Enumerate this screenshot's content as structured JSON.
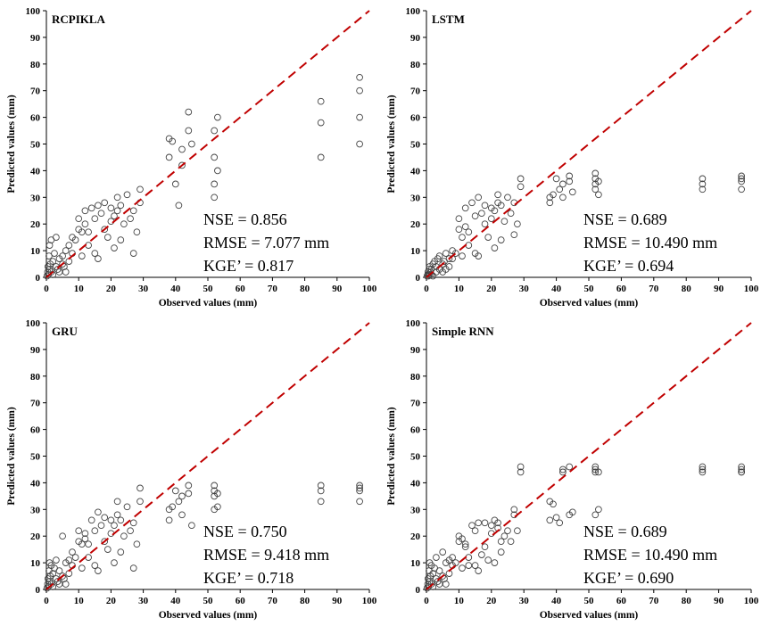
{
  "colors": {
    "points": "#444444",
    "reference_line": "#c00000",
    "axis": "#000000"
  },
  "chart_data": [
    {
      "type": "scatter",
      "title": "RCPIKLA",
      "xlabel": "Observed values (mm)",
      "ylabel": "Predicted values (mm)",
      "xlim": [
        0,
        100
      ],
      "ylim": [
        0,
        100
      ],
      "x_ticks": [
        "0",
        "10",
        "20",
        "30",
        "40",
        "50",
        "60",
        "70",
        "80",
        "90",
        "100"
      ],
      "y_ticks": [
        "0",
        "10",
        "20",
        "30",
        "40",
        "50",
        "60",
        "70",
        "80",
        "90",
        "100"
      ],
      "grid": false,
      "reference_line": "1:1 dashed",
      "metrics": [
        "NSE = 0.856",
        "RMSE = 7.077 mm",
        "KGE’ = 0.817"
      ],
      "series": [
        {
          "x": [
            0.2,
            0.4,
            0.5,
            0.6,
            0.8,
            1,
            1,
            1.2,
            1.5,
            1.5,
            2,
            2,
            2.5,
            3,
            3,
            3.5,
            4,
            4,
            5,
            5,
            5.5,
            6,
            6,
            7,
            7,
            8,
            8,
            9,
            10,
            10,
            11,
            11,
            12,
            12,
            13,
            13,
            14,
            15,
            15,
            16,
            16,
            17,
            18,
            18,
            19,
            20,
            20,
            21,
            21,
            22,
            22,
            23,
            23,
            24,
            25,
            26,
            27,
            27,
            28,
            29,
            29,
            38,
            38,
            39,
            40,
            41,
            42,
            42,
            44,
            44,
            45,
            52,
            52,
            52,
            52,
            53,
            53,
            85,
            85,
            85,
            97,
            97,
            97,
            97
          ],
          "y": [
            0.5,
            2,
            4,
            1,
            8,
            3,
            12,
            5,
            2,
            14,
            6,
            1,
            9,
            4,
            15,
            3,
            7,
            2,
            8,
            5,
            4,
            10,
            2,
            12,
            6,
            15,
            9,
            14,
            18,
            22,
            8,
            17,
            25,
            20,
            12,
            17,
            26,
            22,
            9,
            27,
            7,
            24,
            18,
            28,
            15,
            21,
            26,
            23,
            11,
            25,
            30,
            14,
            27,
            20,
            31,
            22,
            25,
            9,
            17,
            33,
            28,
            45,
            52,
            51,
            35,
            27,
            48,
            42,
            55,
            62,
            50,
            30,
            45,
            35,
            55,
            40,
            60,
            45,
            58,
            66,
            60,
            70,
            75,
            50
          ]
        }
      ]
    },
    {
      "type": "scatter",
      "title": "LSTM",
      "xlabel": "Observed values (mm)",
      "ylabel": "Predicted values (mm)",
      "xlim": [
        0,
        100
      ],
      "ylim": [
        0,
        100
      ],
      "x_ticks": [
        "0",
        "10",
        "20",
        "30",
        "40",
        "50",
        "60",
        "70",
        "80",
        "90",
        "100"
      ],
      "y_ticks": [
        "0",
        "10",
        "20",
        "30",
        "40",
        "50",
        "60",
        "70",
        "80",
        "90",
        "100"
      ],
      "grid": false,
      "reference_line": "1:1 dashed",
      "metrics": [
        "NSE = 0.689",
        "RMSE = 10.490 mm",
        "KGE’ = 0.694"
      ],
      "series": [
        {
          "x": [
            0.2,
            0.4,
            0.5,
            0.6,
            0.8,
            1,
            1,
            1.2,
            1.5,
            1.5,
            2,
            2,
            2.5,
            3,
            3,
            3.5,
            4,
            4,
            5,
            5,
            5.5,
            6,
            6,
            7,
            7,
            8,
            8,
            9,
            10,
            10,
            11,
            11,
            12,
            12,
            13,
            13,
            14,
            15,
            15,
            16,
            16,
            17,
            18,
            18,
            19,
            20,
            20,
            21,
            21,
            22,
            22,
            23,
            23,
            24,
            25,
            26,
            27,
            27,
            28,
            29,
            29,
            38,
            38,
            39,
            40,
            41,
            42,
            42,
            44,
            44,
            45,
            52,
            52,
            52,
            52,
            53,
            53,
            85,
            85,
            85,
            97,
            97,
            97,
            97
          ],
          "y": [
            0.5,
            1,
            2,
            0.5,
            3,
            1,
            4,
            2,
            1,
            3,
            5,
            0.5,
            6,
            2,
            4,
            7,
            3,
            8,
            5,
            2,
            6,
            9,
            3,
            7,
            4,
            10,
            7,
            9,
            18,
            22,
            8,
            15,
            26,
            19,
            12,
            17,
            28,
            23,
            9,
            30,
            8,
            24,
            20,
            27,
            15,
            22,
            26,
            25,
            11,
            28,
            31,
            14,
            27,
            21,
            30,
            24,
            28,
            16,
            20,
            37,
            34,
            28,
            30,
            31,
            37,
            33,
            35,
            30,
            38,
            36,
            32,
            33,
            35,
            37,
            39,
            31,
            36,
            35,
            37,
            33,
            36,
            38,
            33,
            37
          ]
        }
      ]
    },
    {
      "type": "scatter",
      "title": "GRU",
      "xlabel": "Observed values (mm)",
      "ylabel": "Predicted values (mm)",
      "xlim": [
        0,
        100
      ],
      "ylim": [
        0,
        100
      ],
      "x_ticks": [
        "0",
        "10",
        "20",
        "30",
        "40",
        "50",
        "60",
        "70",
        "80",
        "90",
        "100"
      ],
      "y_ticks": [
        "0",
        "10",
        "20",
        "30",
        "40",
        "50",
        "60",
        "70",
        "80",
        "90",
        "100"
      ],
      "grid": false,
      "reference_line": "1:1 dashed",
      "metrics": [
        "NSE = 0.750",
        "RMSE = 9.418 mm",
        "KGE’ = 0.718"
      ],
      "series": [
        {
          "x": [
            0.2,
            0.4,
            0.5,
            0.6,
            0.8,
            1,
            1,
            1.2,
            1.5,
            1.5,
            2,
            2,
            2.5,
            3,
            3,
            3.5,
            4,
            4,
            5,
            5,
            5.5,
            6,
            6,
            7,
            7,
            8,
            8,
            9,
            10,
            10,
            11,
            11,
            12,
            12,
            13,
            13,
            14,
            15,
            15,
            16,
            16,
            17,
            18,
            18,
            19,
            20,
            20,
            21,
            21,
            22,
            22,
            23,
            23,
            24,
            25,
            26,
            27,
            27,
            28,
            29,
            29,
            38,
            38,
            39,
            40,
            41,
            42,
            42,
            44,
            44,
            45,
            52,
            52,
            52,
            52,
            53,
            53,
            85,
            85,
            85,
            97,
            97,
            97,
            97
          ],
          "y": [
            0.5,
            2,
            4,
            1,
            7,
            3,
            10,
            5,
            2,
            9,
            6,
            1,
            8,
            4,
            11,
            3,
            7,
            2,
            20,
            5,
            4,
            10,
            2,
            11,
            6,
            14,
            9,
            12,
            18,
            22,
            8,
            17,
            21,
            19,
            12,
            17,
            26,
            22,
            9,
            29,
            7,
            24,
            18,
            27,
            15,
            21,
            26,
            24,
            10,
            28,
            33,
            14,
            26,
            20,
            31,
            22,
            25,
            8,
            17,
            38,
            33,
            26,
            30,
            31,
            37,
            33,
            35,
            28,
            39,
            36,
            24,
            30,
            35,
            37,
            39,
            31,
            36,
            33,
            37,
            39,
            33,
            37,
            39,
            38
          ]
        }
      ]
    },
    {
      "type": "scatter",
      "title": "Simple RNN",
      "xlabel": "Observed values (mm)",
      "ylabel": "Predicted values (mm)",
      "xlim": [
        0,
        100
      ],
      "ylim": [
        0,
        100
      ],
      "x_ticks": [
        "0",
        "10",
        "20",
        "30",
        "40",
        "50",
        "60",
        "70",
        "80",
        "90",
        "100"
      ],
      "y_ticks": [
        "0",
        "10",
        "20",
        "30",
        "40",
        "50",
        "60",
        "70",
        "80",
        "90",
        "100"
      ],
      "grid": false,
      "reference_line": "1:1 dashed",
      "metrics": [
        "NSE = 0.689",
        "RMSE = 10.490 mm",
        "KGE’ = 0.690"
      ],
      "series": [
        {
          "x": [
            0.2,
            0.4,
            0.5,
            0.6,
            0.8,
            1,
            1,
            1.2,
            1.5,
            1.5,
            2,
            2,
            2.5,
            3,
            3,
            3.5,
            4,
            4,
            5,
            5,
            5.5,
            6,
            6,
            7,
            7,
            8,
            8,
            9,
            10,
            10,
            11,
            11,
            12,
            12,
            13,
            13,
            14,
            15,
            15,
            16,
            16,
            17,
            18,
            18,
            19,
            20,
            20,
            21,
            21,
            22,
            22,
            23,
            23,
            24,
            25,
            26,
            27,
            27,
            28,
            29,
            29,
            38,
            38,
            39,
            40,
            41,
            42,
            42,
            44,
            44,
            45,
            52,
            52,
            52,
            52,
            53,
            53,
            85,
            85,
            85,
            97,
            97,
            97,
            97
          ],
          "y": [
            0.5,
            2,
            4,
            1,
            7,
            3,
            10,
            5,
            2,
            9,
            6,
            1,
            8,
            4,
            12,
            3,
            7,
            2,
            14,
            5,
            4,
            10,
            2,
            11,
            6,
            12,
            9,
            10,
            20,
            18,
            8,
            19,
            16,
            17,
            12,
            9,
            24,
            22,
            9,
            25,
            7,
            13,
            16,
            25,
            11,
            21,
            24,
            26,
            10,
            25,
            23,
            14,
            18,
            20,
            22,
            18,
            30,
            28,
            22,
            46,
            44,
            33,
            26,
            32,
            27,
            25,
            45,
            44,
            46,
            28,
            29,
            45,
            44,
            46,
            28,
            30,
            44,
            46,
            44,
            45,
            44,
            46,
            45,
            44
          ]
        }
      ]
    }
  ]
}
